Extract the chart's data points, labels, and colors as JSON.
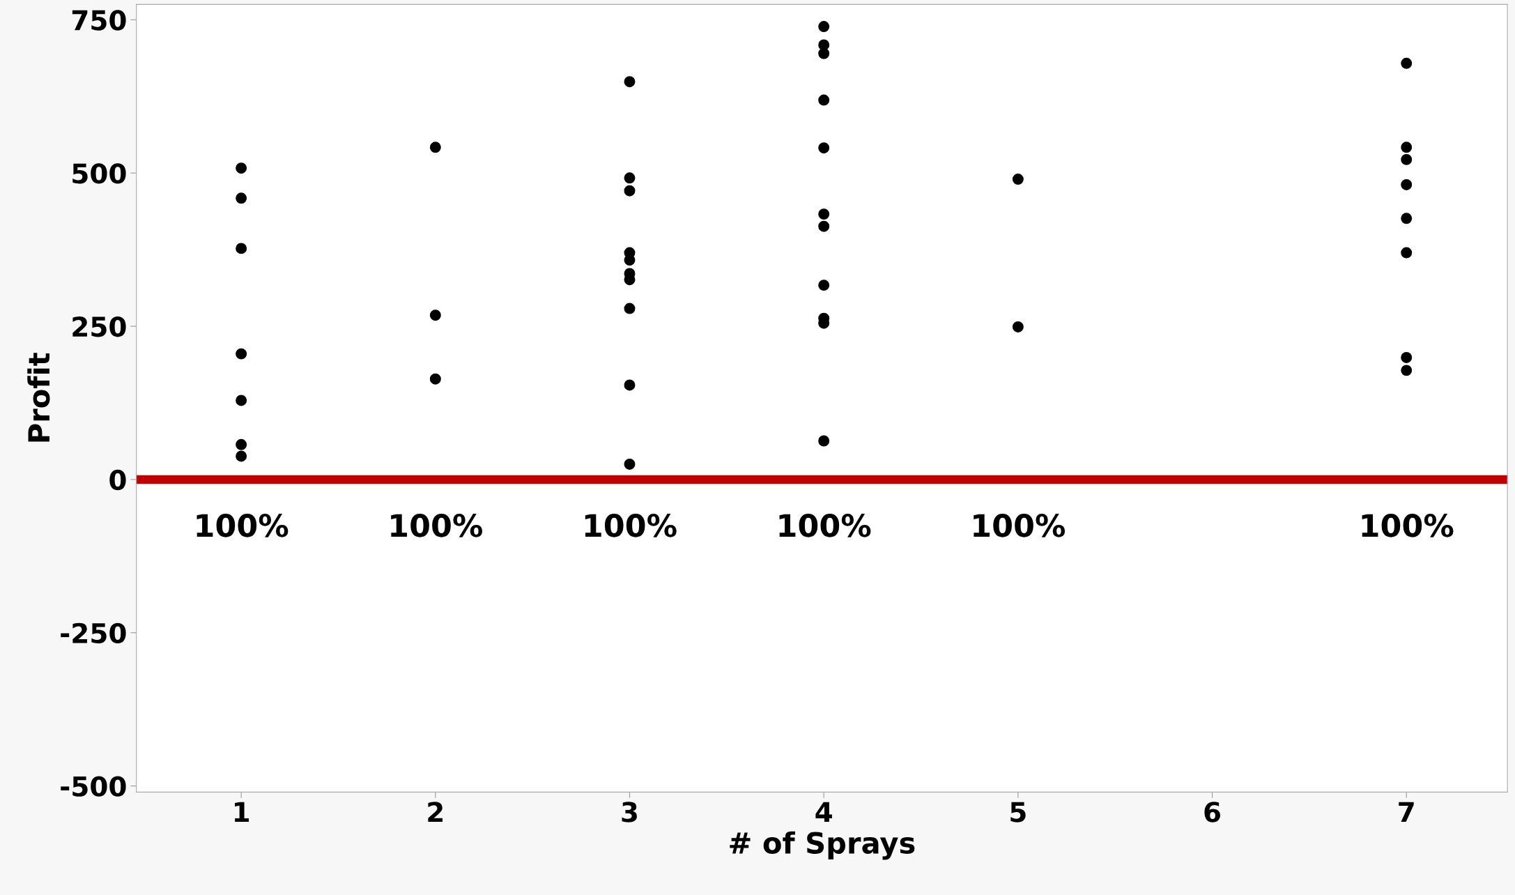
{
  "chart_data": {
    "type": "scatter",
    "xlabel": "# of Sprays",
    "ylabel": "Profit",
    "series": [
      {
        "color": "#000000",
        "x": [
          1,
          1,
          1,
          1,
          1,
          1,
          1,
          2,
          2,
          2,
          3,
          3,
          3,
          3,
          3,
          3,
          3,
          3,
          3,
          3,
          4,
          4,
          4,
          4,
          4,
          4,
          4,
          4,
          4,
          4,
          4,
          5,
          5,
          7,
          7,
          7,
          7,
          7,
          7,
          7,
          7
        ],
        "values": [
          508,
          459,
          377,
          205,
          129,
          57,
          38,
          542,
          268,
          164,
          649,
          492,
          471,
          370,
          358,
          336,
          326,
          279,
          154,
          25,
          739,
          709,
          695,
          619,
          541,
          433,
          413,
          317,
          263,
          255,
          63,
          490,
          249,
          679,
          542,
          522,
          481,
          426,
          370,
          199,
          178
        ]
      }
    ],
    "marker": "circle",
    "xlim": [
      0.46,
      7.52
    ],
    "xticks": [
      1,
      2,
      3,
      4,
      5,
      6,
      7
    ],
    "ylim": [
      -510,
      775
    ],
    "yticks": [
      -500,
      -250,
      0,
      250,
      500,
      750
    ],
    "ref_lines": [
      {
        "axis": "y",
        "value": 0,
        "color": "#c00000"
      }
    ],
    "annotations": [
      "100%",
      "100%",
      "100%",
      "100%",
      "100%",
      "100%"
    ],
    "grid": false,
    "legend": false
  }
}
